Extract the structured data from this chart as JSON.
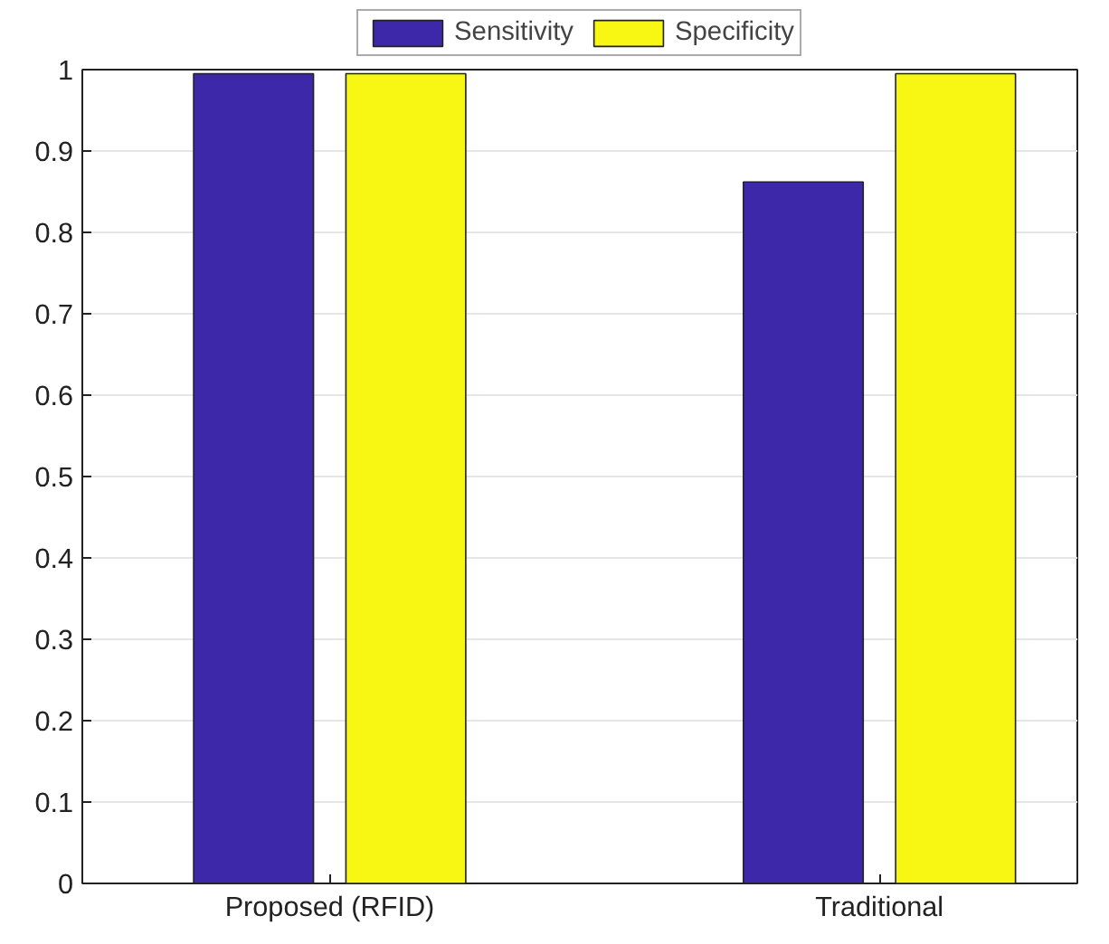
{
  "chart_data": {
    "type": "bar",
    "categories": [
      "Proposed (RFID)",
      "Traditional"
    ],
    "series": [
      {
        "name": "Sensitivity",
        "color": "#3c28a8",
        "values": [
          0.995,
          0.862
        ]
      },
      {
        "name": "Specificity",
        "color": "#f7f713",
        "values": [
          0.995,
          0.995
        ]
      }
    ],
    "ylim": [
      0,
      1
    ],
    "yticks": [
      0,
      0.1,
      0.2,
      0.3,
      0.4,
      0.5,
      0.6,
      0.7,
      0.8,
      0.9,
      1
    ],
    "grid": "y",
    "legend": "top"
  }
}
